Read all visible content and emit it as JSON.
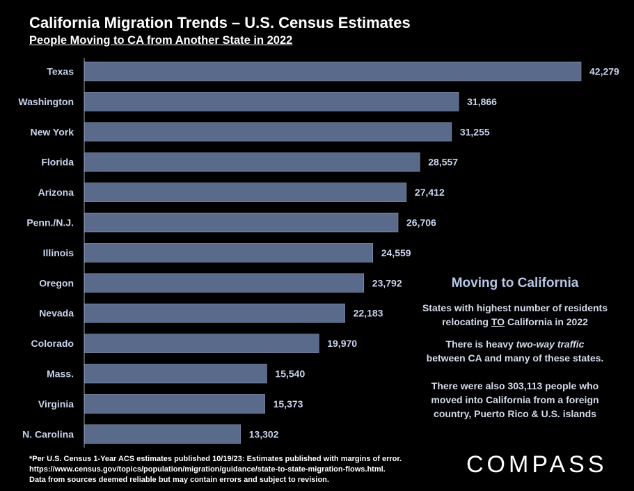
{
  "header": {
    "title": "California Migration Trends – U.S. Census Estimates",
    "subtitle": "People Moving to CA from Another State in 2022"
  },
  "chart_data": {
    "type": "bar",
    "orientation": "horizontal",
    "title": "California Migration Trends – U.S. Census Estimates",
    "subtitle": "People Moving to CA from Another State in 2022",
    "categories": [
      "Texas",
      "Washington",
      "New York",
      "Florida",
      "Arizona",
      "Penn./N.J.",
      "Illinois",
      "Oregon",
      "Nevada",
      "Colorado",
      "Mass.",
      "Virginia",
      "N. Carolina"
    ],
    "values": [
      42279,
      31866,
      31255,
      28557,
      27412,
      26706,
      24559,
      23792,
      22183,
      19970,
      15540,
      15373,
      13302
    ],
    "value_labels": [
      "42,279",
      "31,866",
      "31,255",
      "28,557",
      "27,412",
      "26,706",
      "24,559",
      "23,792",
      "22,183",
      "19,970",
      "15,540",
      "15,373",
      "13,302"
    ],
    "xlim": [
      0,
      42279
    ],
    "grid": false,
    "legend": "none",
    "bar_color": "#5a6a8a"
  },
  "sidebar": {
    "heading": "Moving to California",
    "p1_a": "States with highest number of  residents",
    "p1_b": "relocating ",
    "p1_to": "TO",
    "p1_c": "  California in 2022",
    "p2_a": "There is heavy ",
    "p2_em": "two-way traffic",
    "p2_b": "between CA and many of these states.",
    "p3_a": "There were also 303,113 people who",
    "p3_b": "moved into California from a foreign",
    "p3_c": "country, Puerto Rico & U.S. islands"
  },
  "footnote": {
    "line1": "*Per U.S. Census 1-Year ACS estimates published 10/19/23: Estimates published with margins of error.",
    "line2": "https://www.census.gov/topics/population/migration/guidance/state-to-state-migration-flows.html.",
    "line3": "Data from sources deemed reliable but may contain errors and subject to revision."
  },
  "logo": {
    "text": "COMPASS"
  }
}
